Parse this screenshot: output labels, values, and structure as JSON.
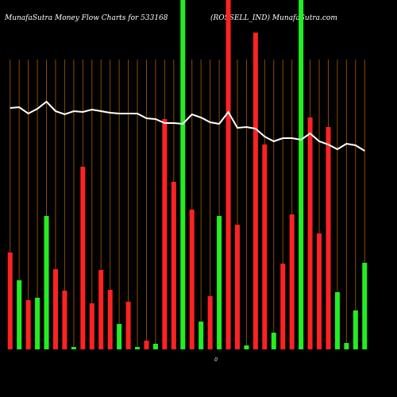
{
  "chart_data": {
    "type": "bar",
    "title": "MunafaSutra  Money Flow  Charts for 533168",
    "subtitle": "(ROSSELL_IND) MunafaSutra.com",
    "x_axis_label": "0",
    "ylim": [
      0,
      440
    ],
    "grid": true,
    "grid_color": "#8b4a00",
    "up_color": "#22ee22",
    "down_color": "#ff2222",
    "series": [
      {
        "name": "volume",
        "values": [
          122,
          87,
          62,
          65,
          168,
          101,
          74,
          3,
          230,
          58,
          100,
          75,
          32,
          60,
          3,
          11,
          7,
          290,
          211,
          440,
          176,
          35,
          67,
          168,
          440,
          157,
          5,
          399,
          258,
          21,
          108,
          170,
          440,
          292,
          146,
          280,
          72,
          8,
          49,
          109
        ],
        "directions": [
          "down",
          "up",
          "down",
          "up",
          "up",
          "down",
          "down",
          "up",
          "down",
          "down",
          "down",
          "down",
          "up",
          "down",
          "up",
          "down",
          "up",
          "down",
          "down",
          "up",
          "down",
          "up",
          "down",
          "up",
          "down",
          "down",
          "up",
          "down",
          "down",
          "up",
          "down",
          "down",
          "up",
          "down",
          "down",
          "down",
          "up",
          "up",
          "up",
          "up"
        ]
      },
      {
        "name": "money flow",
        "color": "#ffffff",
        "values": [
          304,
          305,
          297,
          303,
          312,
          300,
          296,
          300,
          299,
          302,
          300,
          298,
          297,
          297,
          297,
          291,
          290,
          285,
          285,
          284,
          296,
          292,
          286,
          284,
          299,
          279,
          280,
          278,
          268,
          262,
          266,
          266,
          264,
          272,
          262,
          258,
          252,
          259,
          257,
          250
        ]
      }
    ]
  }
}
